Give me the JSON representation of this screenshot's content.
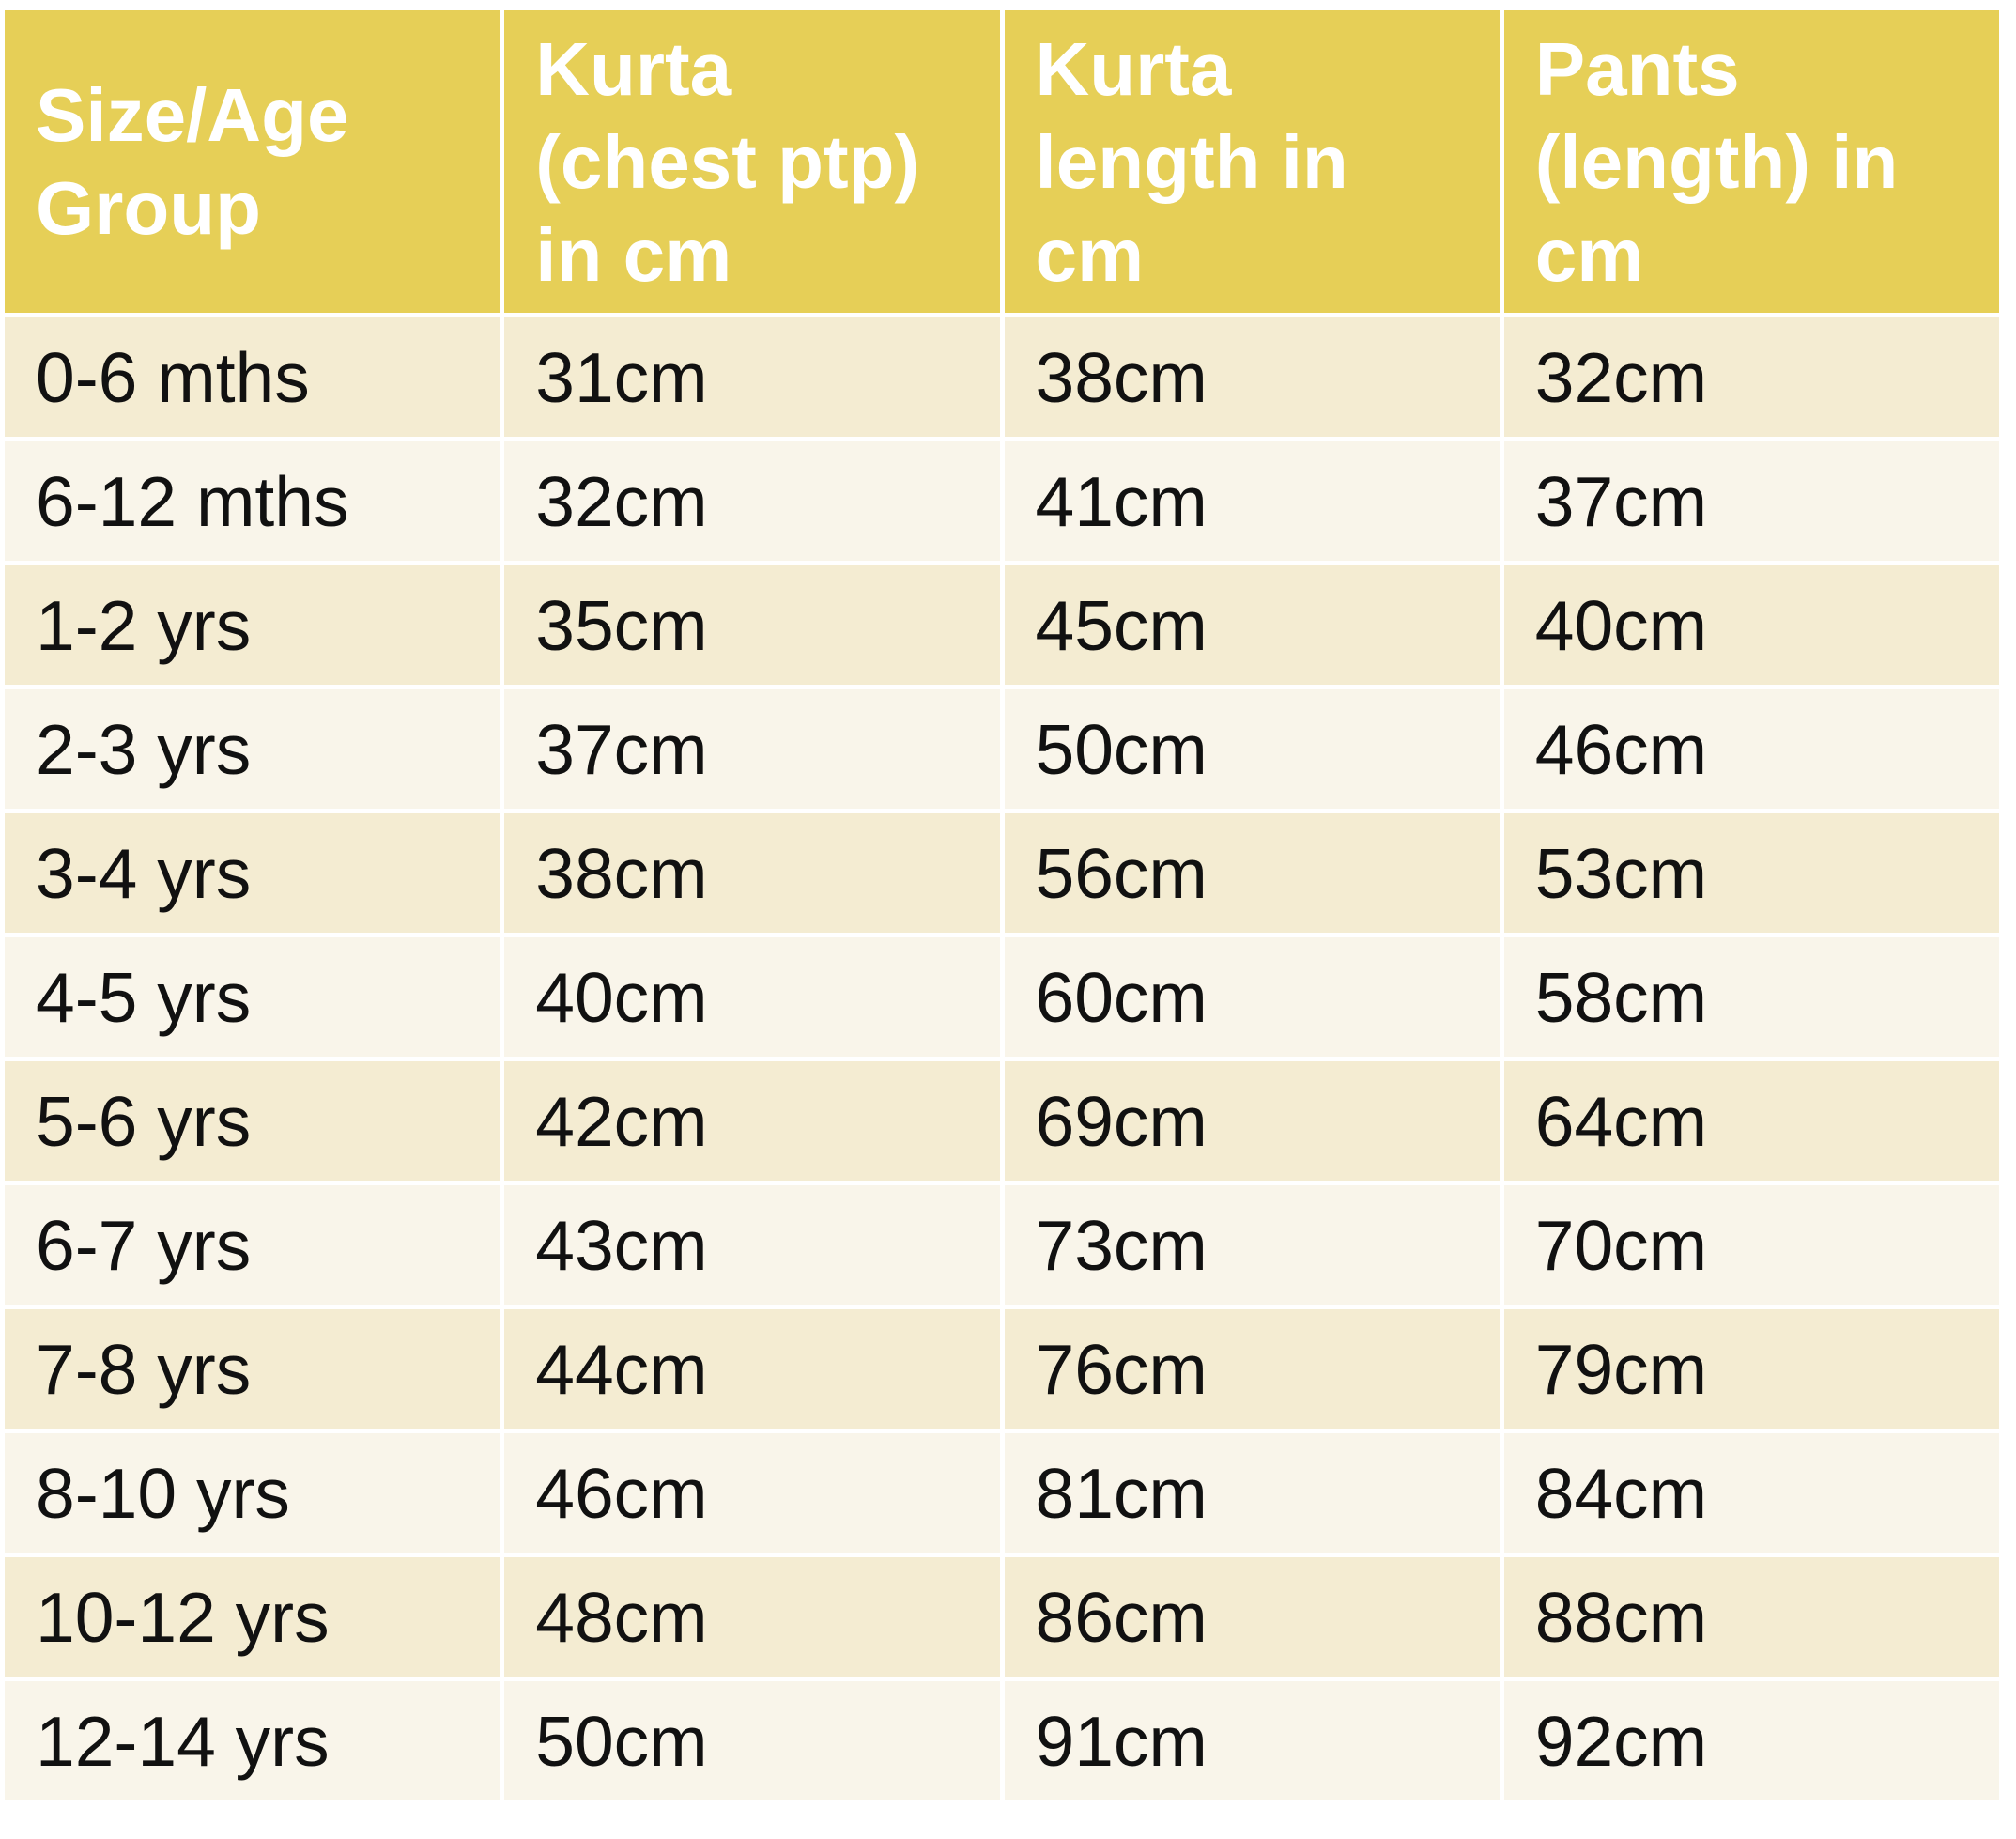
{
  "table": {
    "headers": [
      "Size/Age\nGroup",
      "Kurta\n(chest ptp)\nin cm",
      "Kurta\nlength in\ncm",
      "Pants\n(length) in\ncm"
    ],
    "rows": [
      [
        "0-6 mths",
        "31cm",
        "38cm",
        "32cm"
      ],
      [
        "6-12 mths",
        "32cm",
        "41cm",
        "37cm"
      ],
      [
        "1-2 yrs",
        "35cm",
        "45cm",
        "40cm"
      ],
      [
        "2-3 yrs",
        "37cm",
        "50cm",
        "46cm"
      ],
      [
        "3-4 yrs",
        "38cm",
        "56cm",
        "53cm"
      ],
      [
        "4-5 yrs",
        "40cm",
        "60cm",
        "58cm"
      ],
      [
        "5-6 yrs",
        "42cm",
        "69cm",
        "64cm"
      ],
      [
        "6-7 yrs",
        "43cm",
        "73cm",
        "70cm"
      ],
      [
        "7-8 yrs",
        "44cm",
        "76cm",
        "79cm"
      ],
      [
        "8-10 yrs",
        "46cm",
        "81cm",
        "84cm"
      ],
      [
        "10-12 yrs",
        "48cm",
        "86cm",
        "88cm"
      ],
      [
        "12-14 yrs",
        "50cm",
        "91cm",
        "92cm"
      ]
    ]
  },
  "colors": {
    "header_bg": "#E6CF57",
    "header_text": "#FFFFFF",
    "row_odd_bg": "#F4ECD2",
    "row_even_bg": "#F9F5EA",
    "body_text": "#111111"
  }
}
